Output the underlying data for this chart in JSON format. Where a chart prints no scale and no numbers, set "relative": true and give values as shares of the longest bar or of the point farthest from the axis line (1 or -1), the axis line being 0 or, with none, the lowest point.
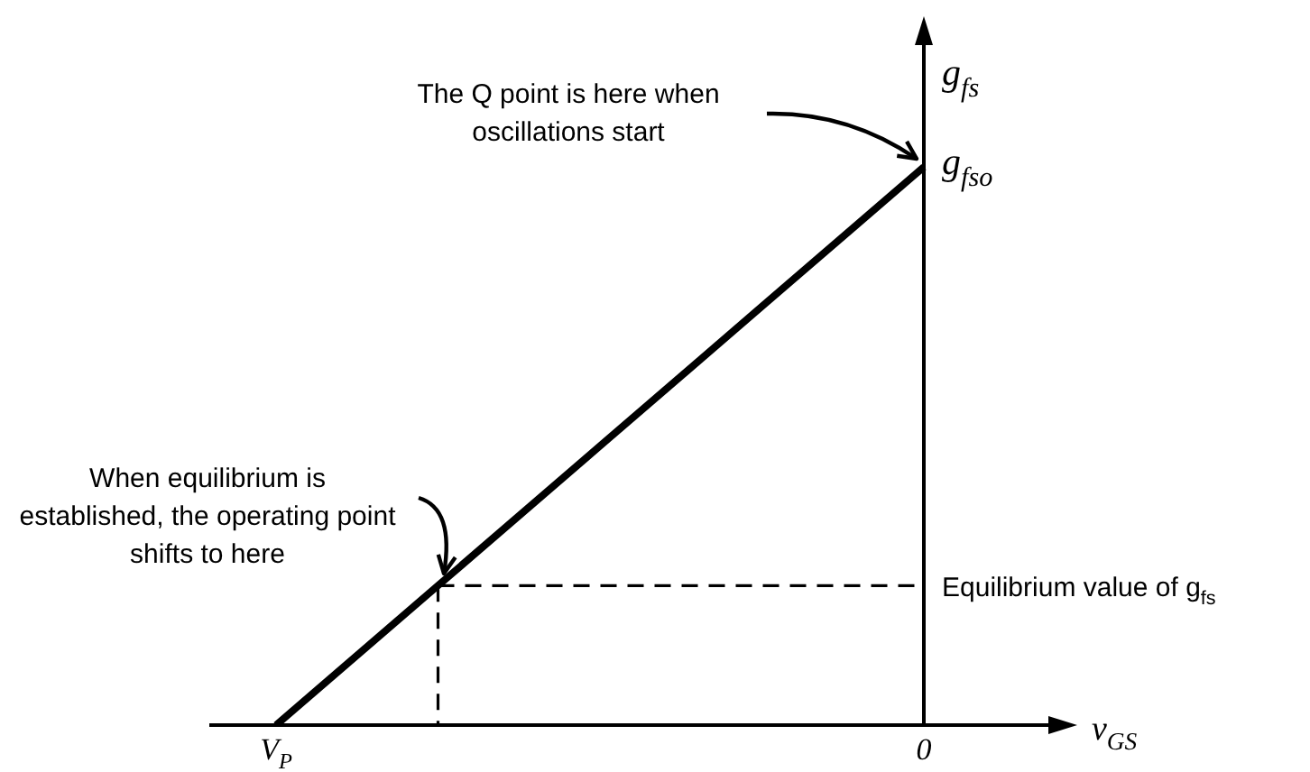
{
  "chart_data": {
    "type": "line",
    "relative": true,
    "xlabel": "v$_{GS}$",
    "ylabel": "g$_{fs}$",
    "categories": [
      "V$_{P}$",
      null,
      null,
      null,
      "0"
    ],
    "marker": "none",
    "series": [
      {
        "type": "line",
        "color": "#000000",
        "values": [
          0,
          0.25,
          0.5,
          0.75,
          1
        ]
      },
      {
        "type": "line",
        "color": "#000000",
        "line_style": "dashed",
        "values": [
          null,
          0.25,
          0.25,
          0.25,
          0.25
        ]
      }
    ],
    "annotations": [
      "The Q point is here when oscillations start",
      {
        "text": "g$_{fso}$",
        "x": "0",
        "y": 1
      },
      "When equilibrium is established, the operating point shifts to here",
      {
        "text": "Equilibrium value of g$_{fs}$",
        "x": "0",
        "y": 0.25
      }
    ]
  }
}
